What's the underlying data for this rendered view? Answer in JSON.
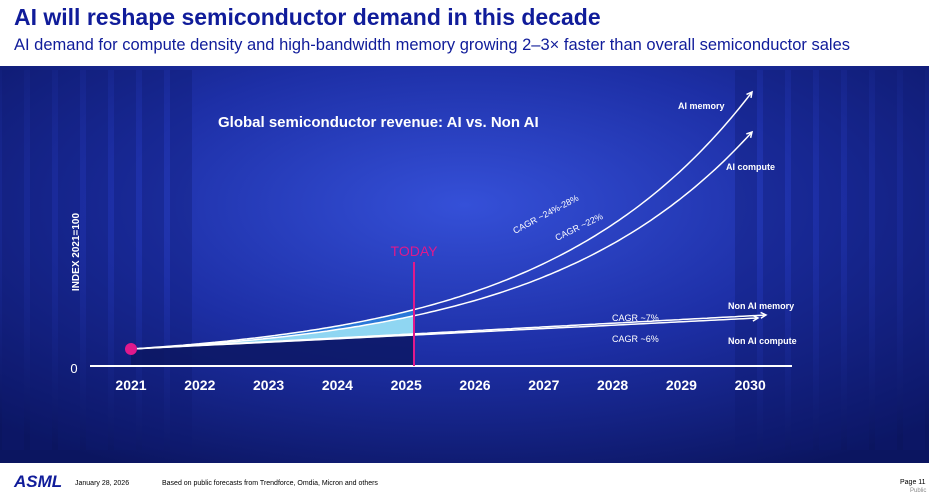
{
  "header": {
    "title": "AI will reshape semiconductor demand in this decade",
    "subtitle": "AI demand for compute density and high-bandwidth memory growing 2–3× faster than overall semiconductor sales"
  },
  "chart": {
    "title": "Global semiconductor revenue: AI vs. Non AI",
    "y_axis_label": "INDEX 2021=100",
    "y_zero": "0",
    "years": [
      "2021",
      "2022",
      "2023",
      "2024",
      "2025",
      "2026",
      "2027",
      "2028",
      "2029",
      "2030"
    ],
    "today": "TODAY",
    "series_labels": {
      "ai_memory": "AI memory",
      "ai_compute": "AI compute",
      "non_ai_memory": "Non AI memory",
      "non_ai_compute": "Non AI compute"
    },
    "cagr_labels": {
      "ai_memory": "CAGR ~24%-28%",
      "ai_compute": "CAGR ~22%",
      "non_ai_memory": "CAGR ~7%",
      "non_ai_compute": "CAGR ~6%"
    }
  },
  "footer": {
    "logo": "ASML",
    "date": "January 28, 2026",
    "source": "Based on public forecasts from Trendforce, Omdia, Micron and others",
    "page": "Page 11",
    "classification": "Public"
  }
}
